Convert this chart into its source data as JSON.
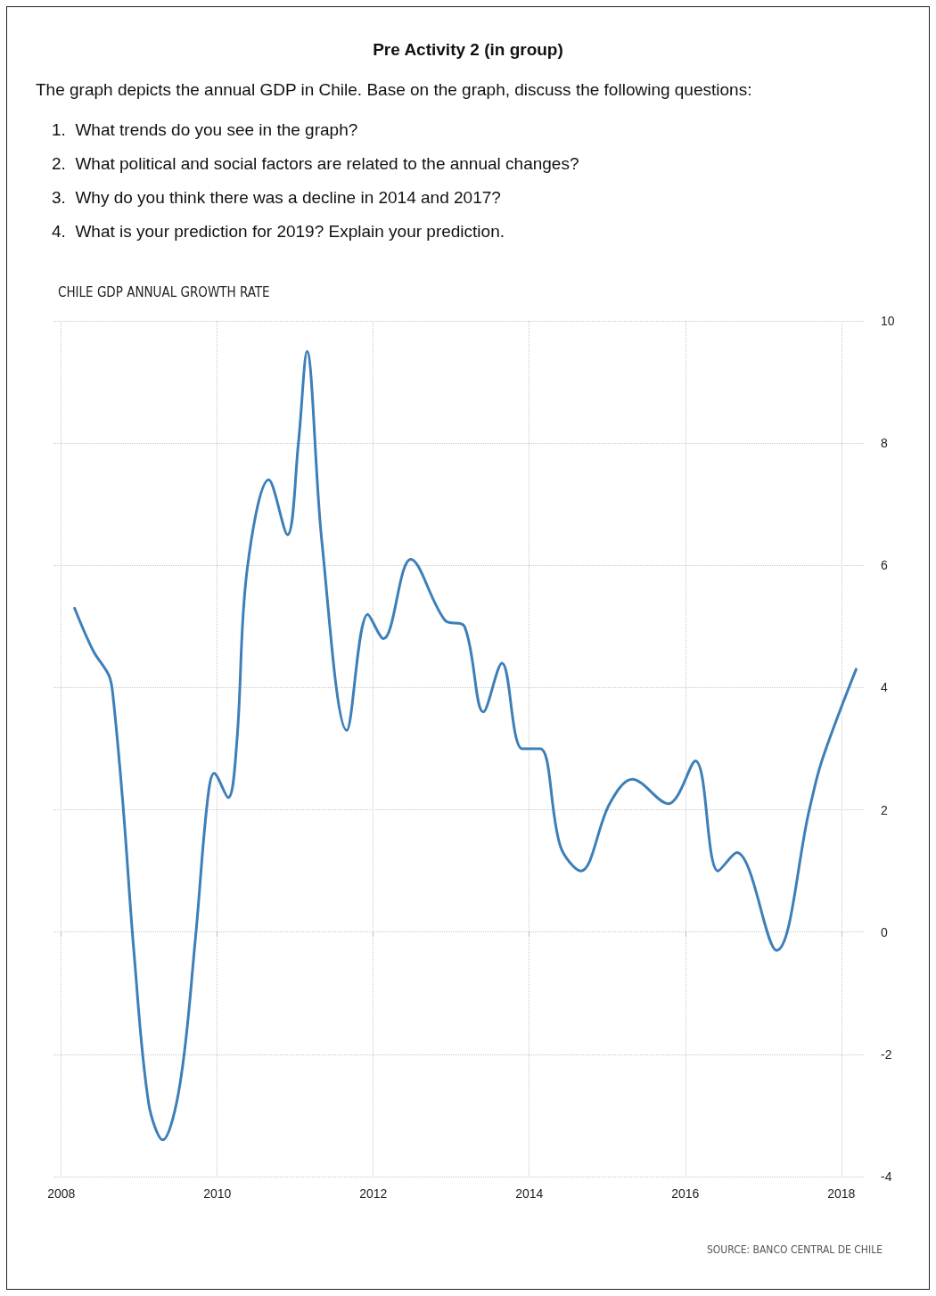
{
  "chart_data": {
    "type": "line",
    "title": "CHILE GDP ANNUAL GROWTH RATE",
    "annotations": [
      "Pre Activity 2 (in group)",
      "The graph depicts the annual GDP in Chile. Base on the graph, discuss the following questions:",
      "1.  What trends do you see in the graph?",
      "2.  What political and social factors are related to the annual changes?",
      "3.  Why do you think there was a decline in 2014 and 2017?",
      "4.  What is your prediction for 2019? Explain your prediction.",
      "SOURCE: BANCO CENTRAL DE CHILE"
    ],
    "x": [
      2008.17,
      2008.41,
      2008.61,
      2008.66,
      2008.79,
      2008.93,
      2009.12,
      2009.3,
      2009.52,
      2009.72,
      2009.87,
      2009.96,
      2010.14,
      2010.25,
      2010.38,
      2010.66,
      2010.9,
      2011.04,
      2011.15,
      2011.34,
      2011.66,
      2011.93,
      2012.13,
      2012.48,
      2012.92,
      2013.17,
      2013.41,
      2013.65,
      2013.91,
      2014.14,
      2014.4,
      2014.66,
      2015.03,
      2015.32,
      2015.78,
      2016.13,
      2016.42,
      2016.66,
      2017.17,
      2017.59,
      2017.75,
      2018.19
    ],
    "series": [
      {
        "color": "#3d7fb8",
        "values": [
          5.3,
          4.6,
          4.2,
          3.9,
          2.1,
          -0.3,
          -2.8,
          -3.4,
          -2.5,
          -0.1,
          2.1,
          2.6,
          2.2,
          3.1,
          5.9,
          7.4,
          6.5,
          8.0,
          9.5,
          6.4,
          3.3,
          5.2,
          4.8,
          6.1,
          5.1,
          5.0,
          3.6,
          4.4,
          3.0,
          3.0,
          1.4,
          1.0,
          2.1,
          2.5,
          2.1,
          2.8,
          1.0,
          1.3,
          -0.3,
          2.0,
          2.8,
          4.3
        ]
      }
    ],
    "xlim": [
      2007.9,
      2018.3
    ],
    "xticks": [
      2008,
      2010,
      2012,
      2014,
      2016,
      2018
    ],
    "ylim": [
      -4,
      10
    ],
    "yticks": [
      -4,
      -2,
      0,
      2,
      4,
      6,
      8,
      10
    ],
    "grid": true,
    "marker": "none",
    "line_style": "solid"
  }
}
